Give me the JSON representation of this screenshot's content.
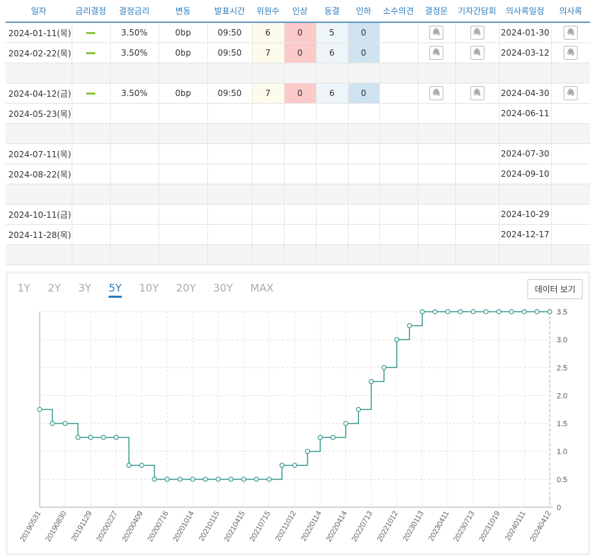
{
  "table": {
    "headers": [
      "일자",
      "금리결정",
      "결정금리",
      "변동",
      "발표시간",
      "위원수",
      "인상",
      "동결",
      "인하",
      "소수의견",
      "결정문",
      "기자간담회",
      "의사록일정",
      "의사록"
    ],
    "rows": [
      {
        "date": "2024-01-11(목)",
        "decision": "hold",
        "rate": "3.50%",
        "change": "0bp",
        "time": "09:50",
        "members": "6",
        "up": "0",
        "hold": "5",
        "down": "0",
        "minority": "",
        "statement": "attach",
        "press": "attach",
        "minutes_date": "2024-01-30",
        "minutes": "attach"
      },
      {
        "date": "2024-02-22(목)",
        "decision": "hold",
        "rate": "3.50%",
        "change": "0bp",
        "time": "09:50",
        "members": "7",
        "up": "0",
        "hold": "6",
        "down": "0",
        "minority": "",
        "statement": "attach",
        "press": "attach",
        "minutes_date": "2024-03-12",
        "minutes": "attach"
      },
      {
        "empty": true
      },
      {
        "date": "2024-04-12(금)",
        "decision": "hold",
        "rate": "3.50%",
        "change": "0bp",
        "time": "09:50",
        "members": "7",
        "up": "0",
        "hold": "6",
        "down": "0",
        "minority": "",
        "statement": "attach",
        "press": "attach",
        "minutes_date": "2024-04-30",
        "minutes": "attach"
      },
      {
        "date": "2024-05-23(목)",
        "minutes_date": "2024-06-11"
      },
      {
        "empty": true
      },
      {
        "date": "2024-07-11(목)",
        "minutes_date": "2024-07-30"
      },
      {
        "date": "2024-08-22(목)",
        "minutes_date": "2024-09-10"
      },
      {
        "empty": true
      },
      {
        "date": "2024-10-11(금)",
        "minutes_date": "2024-10-29"
      },
      {
        "date": "2024-11-28(목)",
        "minutes_date": "2024-12-17"
      },
      {
        "empty": true
      }
    ]
  },
  "chart_panel": {
    "tabs": [
      "1Y",
      "2Y",
      "3Y",
      "5Y",
      "10Y",
      "20Y",
      "30Y",
      "MAX"
    ],
    "active_tab": "5Y",
    "data_button": "데이터 보기"
  },
  "colors": {
    "line": "#3a9b8f",
    "accent": "#2b7bbd",
    "decision_hold": "#8cc63f"
  },
  "chart_data": {
    "type": "line",
    "step": true,
    "x_labels": [
      "20190531",
      "20190830",
      "20191129",
      "20200227",
      "20200409",
      "20200716",
      "20201014",
      "20210115",
      "20210415",
      "20210715",
      "20211012",
      "20220114",
      "20220414",
      "20220713",
      "20221012",
      "20230113",
      "20230411",
      "20230713",
      "20231019",
      "20240111",
      "20240412"
    ],
    "values": [
      1.75,
      1.5,
      1.5,
      1.25,
      1.25,
      1.25,
      1.25,
      0.75,
      0.75,
      0.5,
      0.5,
      0.5,
      0.5,
      0.5,
      0.5,
      0.5,
      0.5,
      0.5,
      0.5,
      0.75,
      0.75,
      1.0,
      1.25,
      1.25,
      1.5,
      1.75,
      2.25,
      2.5,
      3.0,
      3.25,
      3.5,
      3.5,
      3.5,
      3.5,
      3.5,
      3.5,
      3.5,
      3.5,
      3.5,
      3.5,
      3.5
    ],
    "y_ticks": [
      "0",
      "0.5",
      "1.0",
      "1.5",
      "2.0",
      "2.5",
      "3.0",
      "3.5"
    ],
    "ylim": [
      0,
      3.5
    ],
    "grid": true
  }
}
